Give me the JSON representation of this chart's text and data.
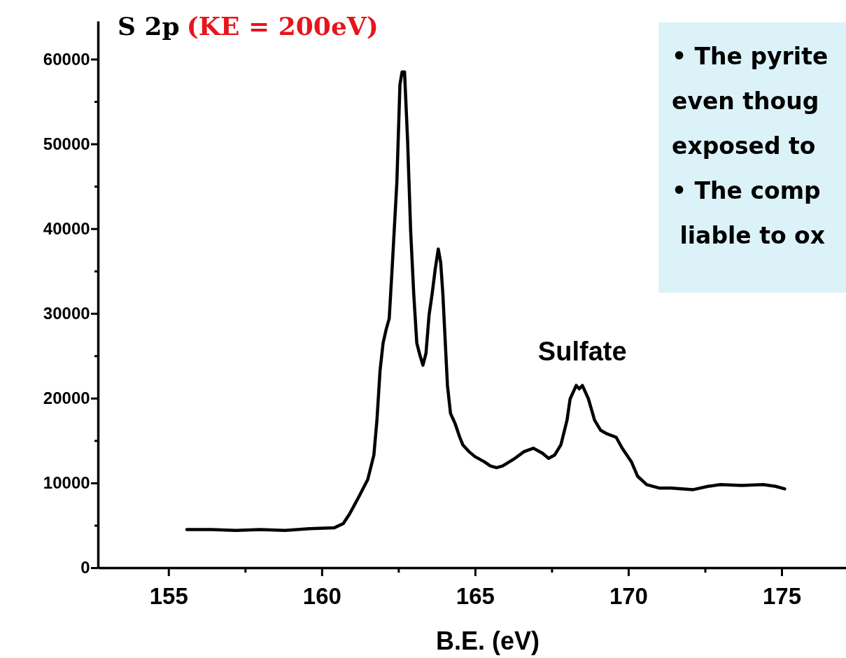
{
  "chart_data": {
    "type": "line",
    "title": "S 2p",
    "subtitle": "(KE = 200eV)",
    "xlabel": "B.E. (eV)",
    "xlim": [
      152.7,
      177.1
    ],
    "ylim": [
      0,
      64500
    ],
    "xticks": [
      155,
      {
        "value": 157.5,
        "label": null
      },
      160,
      {
        "value": 162.5,
        "label": null
      },
      165,
      {
        "value": 167.5,
        "label": null
      },
      170,
      {
        "value": 172.5,
        "label": null
      },
      175
    ],
    "yticks": [
      0,
      {
        "value": 5000,
        "label": null
      },
      10000,
      {
        "value": 15000,
        "label": null
      },
      20000,
      {
        "value": 25000,
        "label": null
      },
      30000,
      {
        "value": 35000,
        "label": null
      },
      40000,
      {
        "value": 45000,
        "label": null
      },
      50000,
      {
        "value": 55000,
        "label": null
      },
      60000
    ],
    "grid": false,
    "marker": "none",
    "line_style": "solid",
    "series": [
      {
        "color": "#000000",
        "x": [
          155.6,
          156.4,
          157.2,
          158.0,
          158.8,
          159.6,
          160.4,
          160.7,
          160.9,
          161.2,
          161.5,
          161.7,
          161.8,
          161.9,
          162.0,
          162.1,
          162.2,
          162.3,
          162.45,
          162.55,
          162.62,
          162.7,
          162.8,
          162.9,
          163.0,
          163.1,
          163.2,
          163.3,
          163.4,
          163.5,
          163.6,
          163.7,
          163.8,
          163.88,
          163.95,
          164.03,
          164.1,
          164.2,
          164.35,
          164.5,
          164.6,
          164.8,
          165.0,
          165.3,
          165.5,
          165.7,
          165.9,
          166.3,
          166.6,
          166.9,
          167.2,
          167.4,
          167.6,
          167.8,
          168.0,
          168.1,
          168.3,
          168.4,
          168.5,
          168.7,
          168.9,
          169.1,
          169.3,
          169.6,
          169.8,
          170.1,
          170.3,
          170.6,
          171.0,
          171.4,
          172.1,
          172.6,
          173.0,
          173.7,
          174.4,
          174.8,
          175.1
        ],
        "values": [
          4500,
          4500,
          4400,
          4500,
          4400,
          4600,
          4700,
          5200,
          6300,
          8300,
          10400,
          13300,
          17400,
          23200,
          26500,
          28100,
          29400,
          35600,
          45500,
          57000,
          58500,
          58500,
          50400,
          39700,
          32300,
          26500,
          25100,
          23900,
          25300,
          29800,
          32300,
          35200,
          37600,
          36000,
          32300,
          26500,
          21500,
          18200,
          17000,
          15400,
          14500,
          13700,
          13100,
          12500,
          12000,
          11800,
          12000,
          12900,
          13700,
          14100,
          13500,
          12900,
          13300,
          14500,
          17400,
          19900,
          21500,
          21100,
          21500,
          19900,
          17400,
          16200,
          15800,
          15400,
          14100,
          12500,
          10800,
          9800,
          9400,
          9400,
          9200,
          9600,
          9800,
          9700,
          9800,
          9600,
          9300
        ]
      }
    ],
    "annotations": [
      {
        "text": "Sulfate",
        "x": 168.5,
        "y": 21500
      },
      "• The pyrite",
      "even thoug",
      "exposed to",
      "• The comp",
      " liable to ox"
    ]
  }
}
